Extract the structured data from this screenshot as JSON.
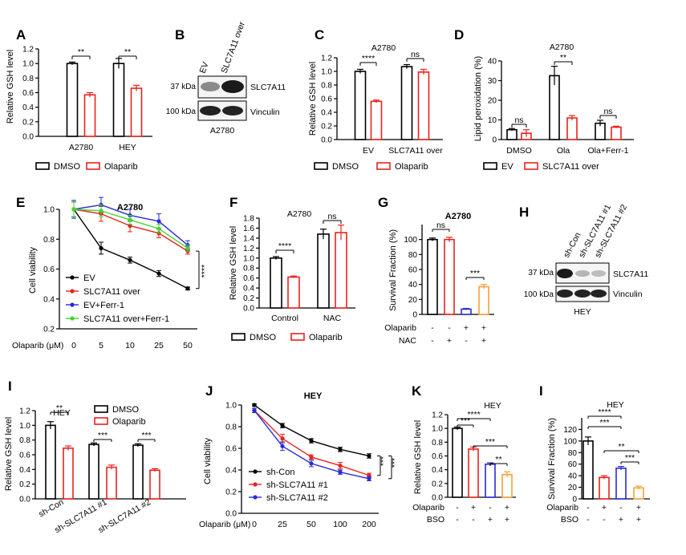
{
  "colors": {
    "dmso": "#000000",
    "olaparib": "#e8231d",
    "ev_red": "#e8231d",
    "blue": "#2a2bd6",
    "green": "#44d62c",
    "orange": "#f4a03a"
  },
  "panels": {
    "A": {
      "label": "A",
      "ylabel": "Relative GSH level",
      "legend": [
        "DMSO",
        "Olaparib"
      ]
    },
    "B": {
      "label": "B",
      "col_labels": [
        "EV",
        "SLC7A11 over"
      ],
      "rows": [
        {
          "kda": "37 kDa",
          "name": "SLC7A11"
        },
        {
          "kda": "100 kDa",
          "name": "Vinculin"
        }
      ],
      "cell": "A2780"
    },
    "C": {
      "label": "C",
      "title": "A2780",
      "ylabel": "Relative GSH level",
      "legend": [
        "DMSO",
        "Olaparib"
      ]
    },
    "D": {
      "label": "D",
      "title": "A2780",
      "ylabel": "Lipid peroxidation (%)",
      "legend": [
        "EV",
        "SLC7A11 over"
      ]
    },
    "E": {
      "label": "E",
      "title": "A2780",
      "ylabel": "Cell viability",
      "xlabel": "Olaparib (μM)",
      "sig": "****"
    },
    "F": {
      "label": "F",
      "title": "A2780",
      "ylabel": "Relative GSH level",
      "legend": [
        "DMSO",
        "Olaparib"
      ]
    },
    "G": {
      "label": "G",
      "title": "A2780",
      "ylabel": "Survival Fraction (%)",
      "treat_rows": [
        {
          "name": "Olaparib",
          "marks": [
            "-",
            "-",
            "+",
            "+"
          ]
        },
        {
          "name": "NAC",
          "marks": [
            "-",
            "+",
            "-",
            "+"
          ]
        }
      ]
    },
    "H": {
      "label": "H",
      "col_labels": [
        "sh-Con",
        "sh-SLC7A11 #1",
        "sh-SLC7A11 #2"
      ],
      "rows": [
        {
          "kda": "37 kDa",
          "name": "SLC7A11"
        },
        {
          "kda": "100 kDa",
          "name": "Vinculin"
        }
      ],
      "cell": "HEY"
    },
    "I": {
      "label": "I",
      "title": "HEY",
      "ylabel": "Relative GSH level",
      "legend": [
        "DMSO",
        "Olaparib"
      ]
    },
    "J": {
      "label": "J",
      "title": "HEY",
      "ylabel": "Cell viability",
      "xlabel": "Olaparib (μM)",
      "sig": "***"
    },
    "K": {
      "label": "K",
      "title": "HEY",
      "ylabel": "Relative GSH level",
      "treat_rows": [
        {
          "name": "Olaparib",
          "marks": [
            "-",
            "+",
            "-",
            "+"
          ]
        },
        {
          "name": "BSO",
          "marks": [
            "-",
            "-",
            "+",
            "+"
          ]
        }
      ]
    },
    "L": {
      "label": "I",
      "title": "HEY",
      "ylabel": "Survival Fraction (%)",
      "treat_rows": [
        {
          "name": "Olaparib",
          "marks": [
            "-",
            "+",
            "-",
            "+"
          ]
        },
        {
          "name": "BSO",
          "marks": [
            "-",
            "-",
            "+",
            "+"
          ]
        }
      ]
    }
  },
  "chart_data": [
    {
      "id": "A",
      "type": "bar",
      "categories": [
        "A2780",
        "HEY"
      ],
      "ylim": [
        0,
        1.2
      ],
      "yticks": [
        0,
        0.2,
        0.4,
        0.6,
        0.8,
        1.0,
        1.2
      ],
      "series": [
        {
          "name": "DMSO",
          "values": [
            1.0,
            1.0
          ],
          "err": [
            0.02,
            0.07
          ]
        },
        {
          "name": "Olaparib",
          "values": [
            0.57,
            0.66
          ],
          "err": [
            0.03,
            0.04
          ]
        }
      ],
      "annotations": [
        "**",
        "**"
      ]
    },
    {
      "id": "C",
      "type": "bar",
      "title": "A2780",
      "categories": [
        "EV",
        "SLC7A11 over"
      ],
      "ylim": [
        0,
        1.2
      ],
      "yticks": [
        0,
        0.2,
        0.4,
        0.6,
        0.8,
        1.0,
        1.2
      ],
      "series": [
        {
          "name": "DMSO",
          "values": [
            1.0,
            1.07
          ],
          "err": [
            0.03,
            0.03
          ]
        },
        {
          "name": "Olaparib",
          "values": [
            0.56,
            0.99
          ],
          "err": [
            0.02,
            0.04
          ]
        }
      ],
      "annotations": [
        "****",
        "ns"
      ]
    },
    {
      "id": "D",
      "type": "bar",
      "title": "A2780",
      "categories": [
        "DMSO",
        "Ola",
        "Ola+Ferr-1"
      ],
      "ylim": [
        0,
        40
      ],
      "yticks": [
        0,
        10,
        20,
        30,
        40
      ],
      "series": [
        {
          "name": "EV",
          "values": [
            5.0,
            32.5,
            8.3
          ],
          "err": [
            0.6,
            4.8,
            1.5
          ]
        },
        {
          "name": "SLC7A11 over",
          "values": [
            3.2,
            11.0,
            6.3
          ],
          "err": [
            1.8,
            1.2,
            0.5
          ]
        }
      ],
      "annotations": [
        "ns",
        "**",
        "ns"
      ]
    },
    {
      "id": "E",
      "type": "line",
      "title": "A2780",
      "x": [
        "0",
        "5",
        "10",
        "25",
        "50"
      ],
      "ylim": [
        0.2,
        1.0
      ],
      "yticks": [
        0.2,
        0.4,
        0.6,
        0.8,
        1.0
      ],
      "series": [
        {
          "name": "EV",
          "values": [
            1.0,
            0.74,
            0.66,
            0.57,
            0.47
          ],
          "err": [
            0.05,
            0.04,
            0.02,
            0.02,
            0.01
          ]
        },
        {
          "name": "SLC7A11 over",
          "values": [
            1.0,
            0.97,
            0.89,
            0.84,
            0.72
          ],
          "err": [
            0.05,
            0.05,
            0.04,
            0.03,
            0.02
          ]
        },
        {
          "name": "EV+Ferr-1",
          "values": [
            1.0,
            1.03,
            0.96,
            0.92,
            0.76
          ],
          "err": [
            0.06,
            0.05,
            0.04,
            0.05,
            0.03
          ]
        },
        {
          "name": "SLC7A11 over+Ferr-1",
          "values": [
            1.0,
            0.99,
            0.93,
            0.87,
            0.74
          ],
          "err": [
            0.05,
            0.04,
            0.03,
            0.03,
            0.02
          ]
        }
      ]
    },
    {
      "id": "F",
      "type": "bar",
      "title": "A2780",
      "categories": [
        "Control",
        "NAC"
      ],
      "ylim": [
        0,
        1.8
      ],
      "yticks": [
        0,
        0.2,
        0.4,
        0.6,
        0.8,
        1.0,
        1.2,
        1.4,
        1.6,
        1.8
      ],
      "series": [
        {
          "name": "DMSO",
          "values": [
            1.0,
            1.48
          ],
          "err": [
            0.03,
            0.1
          ]
        },
        {
          "name": "Olaparib",
          "values": [
            0.62,
            1.51
          ],
          "err": [
            0.02,
            0.15
          ]
        }
      ],
      "annotations": [
        "****",
        "ns"
      ]
    },
    {
      "id": "G",
      "type": "bar",
      "title": "A2780",
      "categories": [
        "1",
        "2",
        "3",
        "4"
      ],
      "ylim": [
        0,
        120
      ],
      "yticks": [
        0,
        20,
        40,
        60,
        80,
        100
      ],
      "values": [
        100,
        100,
        7,
        37
      ],
      "err": [
        2,
        3,
        1,
        3
      ],
      "annotations": [
        "ns",
        "***"
      ]
    },
    {
      "id": "I",
      "type": "bar",
      "title": "HEY",
      "categories": [
        "sh-Con",
        "sh-SLC7A11 #1",
        "sh-SLC7A11 #2"
      ],
      "ylim": [
        0,
        1.2
      ],
      "yticks": [
        0,
        0.2,
        0.4,
        0.6,
        0.8,
        1.0,
        1.2
      ],
      "series": [
        {
          "name": "DMSO",
          "values": [
            1.0,
            0.74,
            0.73
          ],
          "err": [
            0.05,
            0.02,
            0.02
          ]
        },
        {
          "name": "Olaparib",
          "values": [
            0.69,
            0.43,
            0.39
          ],
          "err": [
            0.03,
            0.03,
            0.02
          ]
        }
      ],
      "annotations": [
        "**",
        "***",
        "***"
      ]
    },
    {
      "id": "J",
      "type": "line",
      "title": "HEY",
      "x": [
        "0",
        "25",
        "50",
        "100",
        "200"
      ],
      "ylim": [
        0,
        1.0
      ],
      "yticks": [
        0,
        0.2,
        0.4,
        0.6,
        0.8,
        1.0
      ],
      "series": [
        {
          "name": "sh-Con",
          "values": [
            1.0,
            0.81,
            0.67,
            0.59,
            0.53
          ],
          "err": [
            0.01,
            0.02,
            0.02,
            0.02,
            0.02
          ]
        },
        {
          "name": "sh-SLC7A11 #1",
          "values": [
            0.95,
            0.69,
            0.52,
            0.44,
            0.35
          ],
          "err": [
            0.02,
            0.04,
            0.02,
            0.03,
            0.02
          ]
        },
        {
          "name": "sh-SLC7A11 #2",
          "values": [
            0.95,
            0.62,
            0.46,
            0.38,
            0.32
          ],
          "err": [
            0.02,
            0.04,
            0.03,
            0.02,
            0.02
          ]
        }
      ]
    },
    {
      "id": "K",
      "type": "bar",
      "title": "HEY",
      "categories": [
        "1",
        "2",
        "3",
        "4"
      ],
      "ylim": [
        0,
        1.2
      ],
      "yticks": [
        0,
        0.2,
        0.4,
        0.6,
        0.8,
        1.0,
        1.2
      ],
      "values": [
        1.0,
        0.7,
        0.48,
        0.33
      ],
      "err": [
        0.02,
        0.03,
        0.02,
        0.04
      ],
      "annotations": [
        "***",
        "****",
        "***",
        "**"
      ]
    },
    {
      "id": "L",
      "type": "bar",
      "title": "HEY",
      "categories": [
        "1",
        "2",
        "3",
        "4"
      ],
      "ylim": [
        0,
        140
      ],
      "yticks": [
        0,
        20,
        40,
        60,
        80,
        100,
        120
      ],
      "values": [
        100,
        37,
        53,
        19
      ],
      "err": [
        7,
        3,
        3,
        3
      ],
      "annotations": [
        "****",
        "***",
        "**",
        "***"
      ]
    }
  ]
}
